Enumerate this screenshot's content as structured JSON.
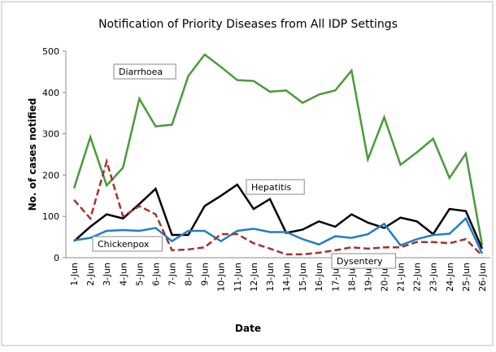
{
  "chart_data": {
    "type": "line",
    "title": "Notification of Priority Diseases from All IDP Settings",
    "x_label": "Date",
    "y_label": "No. of cases notified",
    "categories": [
      "1-Jun",
      "2-Jun",
      "3-Jun",
      "4-Jun",
      "5-Jun",
      "6-Jun",
      "7-Jun",
      "8-Jun",
      "9-Jun",
      "10-Jun",
      "11-Jun",
      "12-Jun",
      "13-Jun",
      "14-Jun",
      "15-Jun",
      "16-Jun",
      "17-Jun",
      "18-Jun",
      "19-Jun",
      "20-Jun",
      "21-Jun",
      "22-Jun",
      "23-Jun",
      "24-Jun",
      "25-Jun",
      "26-Jun"
    ],
    "ylim": [
      0,
      500
    ],
    "yticks": [
      0,
      100,
      200,
      300,
      400,
      500
    ],
    "series": [
      {
        "name": "Diarrhoea",
        "color": "#4a9a3a",
        "dashed": false,
        "values": [
          168,
          292,
          175,
          218,
          385,
          318,
          322,
          440,
          492,
          462,
          430,
          428,
          402,
          405,
          375,
          395,
          405,
          453,
          238,
          340,
          225,
          255,
          288,
          193,
          252,
          30
        ]
      },
      {
        "name": "Hepatitis",
        "color": "#000000",
        "dashed": false,
        "values": [
          40,
          75,
          105,
          95,
          130,
          167,
          55,
          55,
          125,
          150,
          177,
          118,
          142,
          60,
          68,
          88,
          75,
          105,
          85,
          72,
          97,
          88,
          57,
          118,
          113,
          22
        ]
      },
      {
        "name": "Chickenpox",
        "color": "#1f7fc4",
        "dashed": false,
        "values": [
          42,
          48,
          65,
          67,
          65,
          72,
          40,
          65,
          65,
          40,
          65,
          70,
          62,
          62,
          45,
          32,
          52,
          48,
          57,
          82,
          30,
          45,
          55,
          58,
          95,
          10
        ]
      },
      {
        "name": "Dysentery",
        "color": "#a0342e",
        "dashed": true,
        "values": [
          140,
          95,
          233,
          100,
          125,
          105,
          18,
          20,
          25,
          57,
          57,
          35,
          22,
          8,
          8,
          12,
          18,
          25,
          22,
          25,
          25,
          38,
          38,
          35,
          45,
          5
        ]
      }
    ]
  }
}
